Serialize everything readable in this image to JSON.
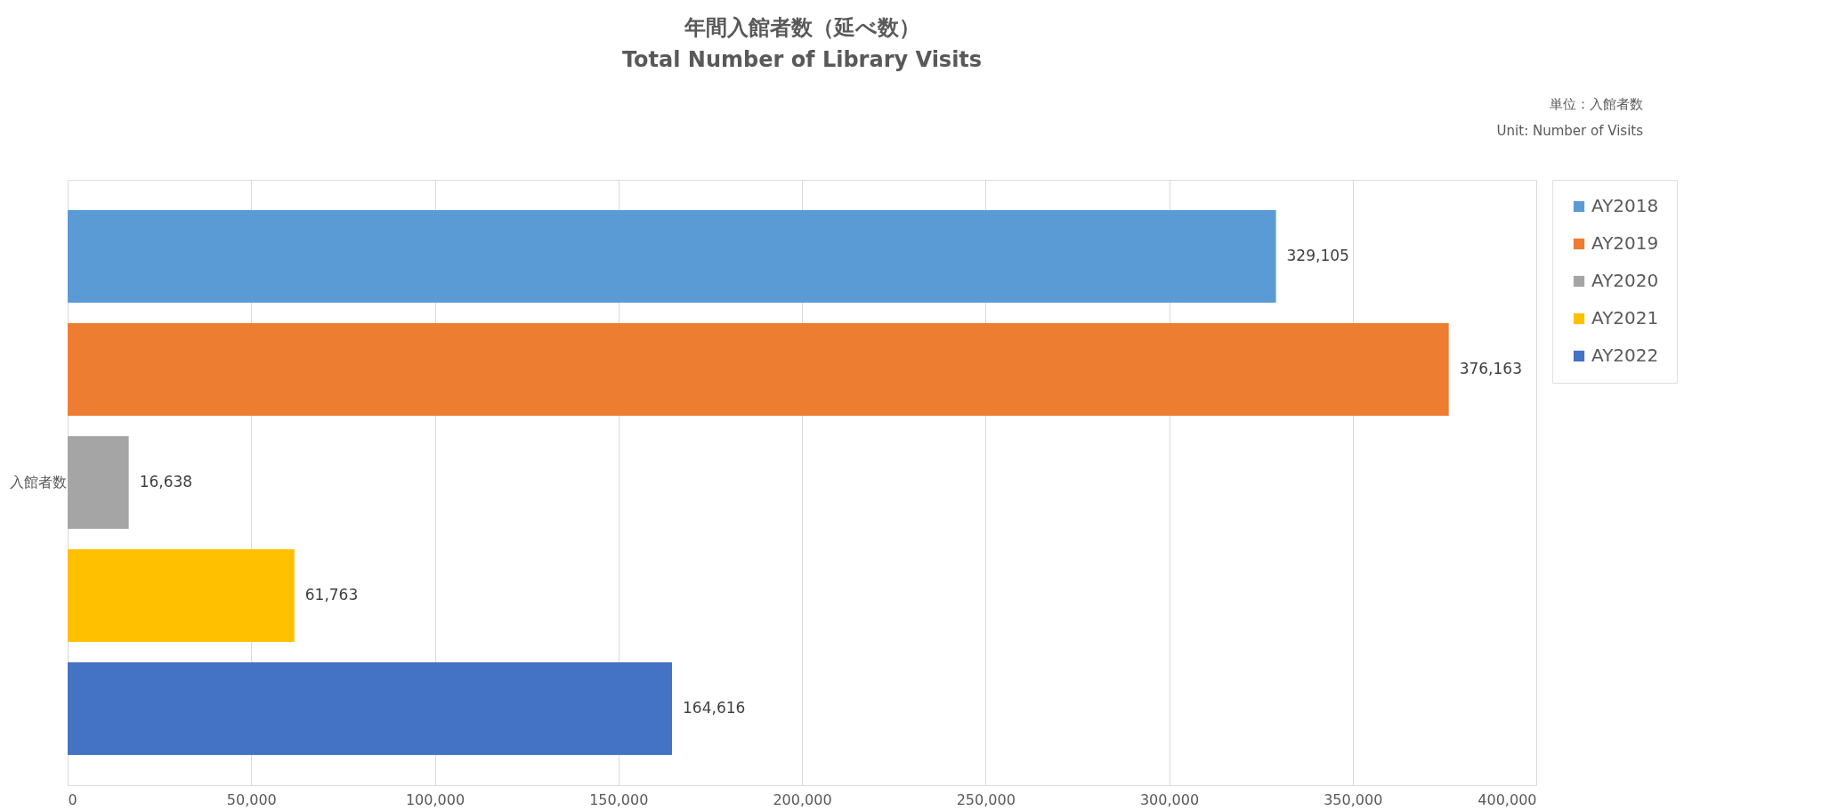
{
  "chart_data": {
    "type": "bar",
    "orientation": "horizontal",
    "title": "年間入館者数（延べ数）",
    "subtitle": "Total Number of Library Visits",
    "annotations": [
      "単位：入館者数",
      "Unit: Number of Visits"
    ],
    "categories": [
      "入館者数"
    ],
    "series": [
      {
        "name": "AY2018",
        "color": "#5b9bd5",
        "values": [
          329105
        ],
        "value_labels": [
          "329,105"
        ]
      },
      {
        "name": "AY2019",
        "color": "#ed7d31",
        "values": [
          376163
        ],
        "value_labels": [
          "376,163"
        ]
      },
      {
        "name": "AY2020",
        "color": "#a5a5a5",
        "values": [
          16638
        ],
        "value_labels": [
          "16,638"
        ]
      },
      {
        "name": "AY2021",
        "color": "#ffc000",
        "values": [
          61763
        ],
        "value_labels": [
          "61,763"
        ]
      },
      {
        "name": "AY2022",
        "color": "#4472c4",
        "values": [
          164616
        ],
        "value_labels": [
          "164,616"
        ]
      }
    ],
    "xlim": [
      0,
      400000
    ],
    "xticks": [
      0,
      {
        "value": 50000,
        "label": "50,000"
      },
      {
        "value": 100000,
        "label": "100,000"
      },
      {
        "value": 150000,
        "label": "150,000"
      },
      {
        "value": 200000,
        "label": "200,000"
      },
      {
        "value": 250000,
        "label": "250,000"
      },
      {
        "value": 300000,
        "label": "300,000"
      },
      {
        "value": 350000,
        "label": "350,000"
      },
      {
        "value": 400000,
        "label": "400,000"
      }
    ],
    "grid": "x",
    "legend": "right"
  }
}
